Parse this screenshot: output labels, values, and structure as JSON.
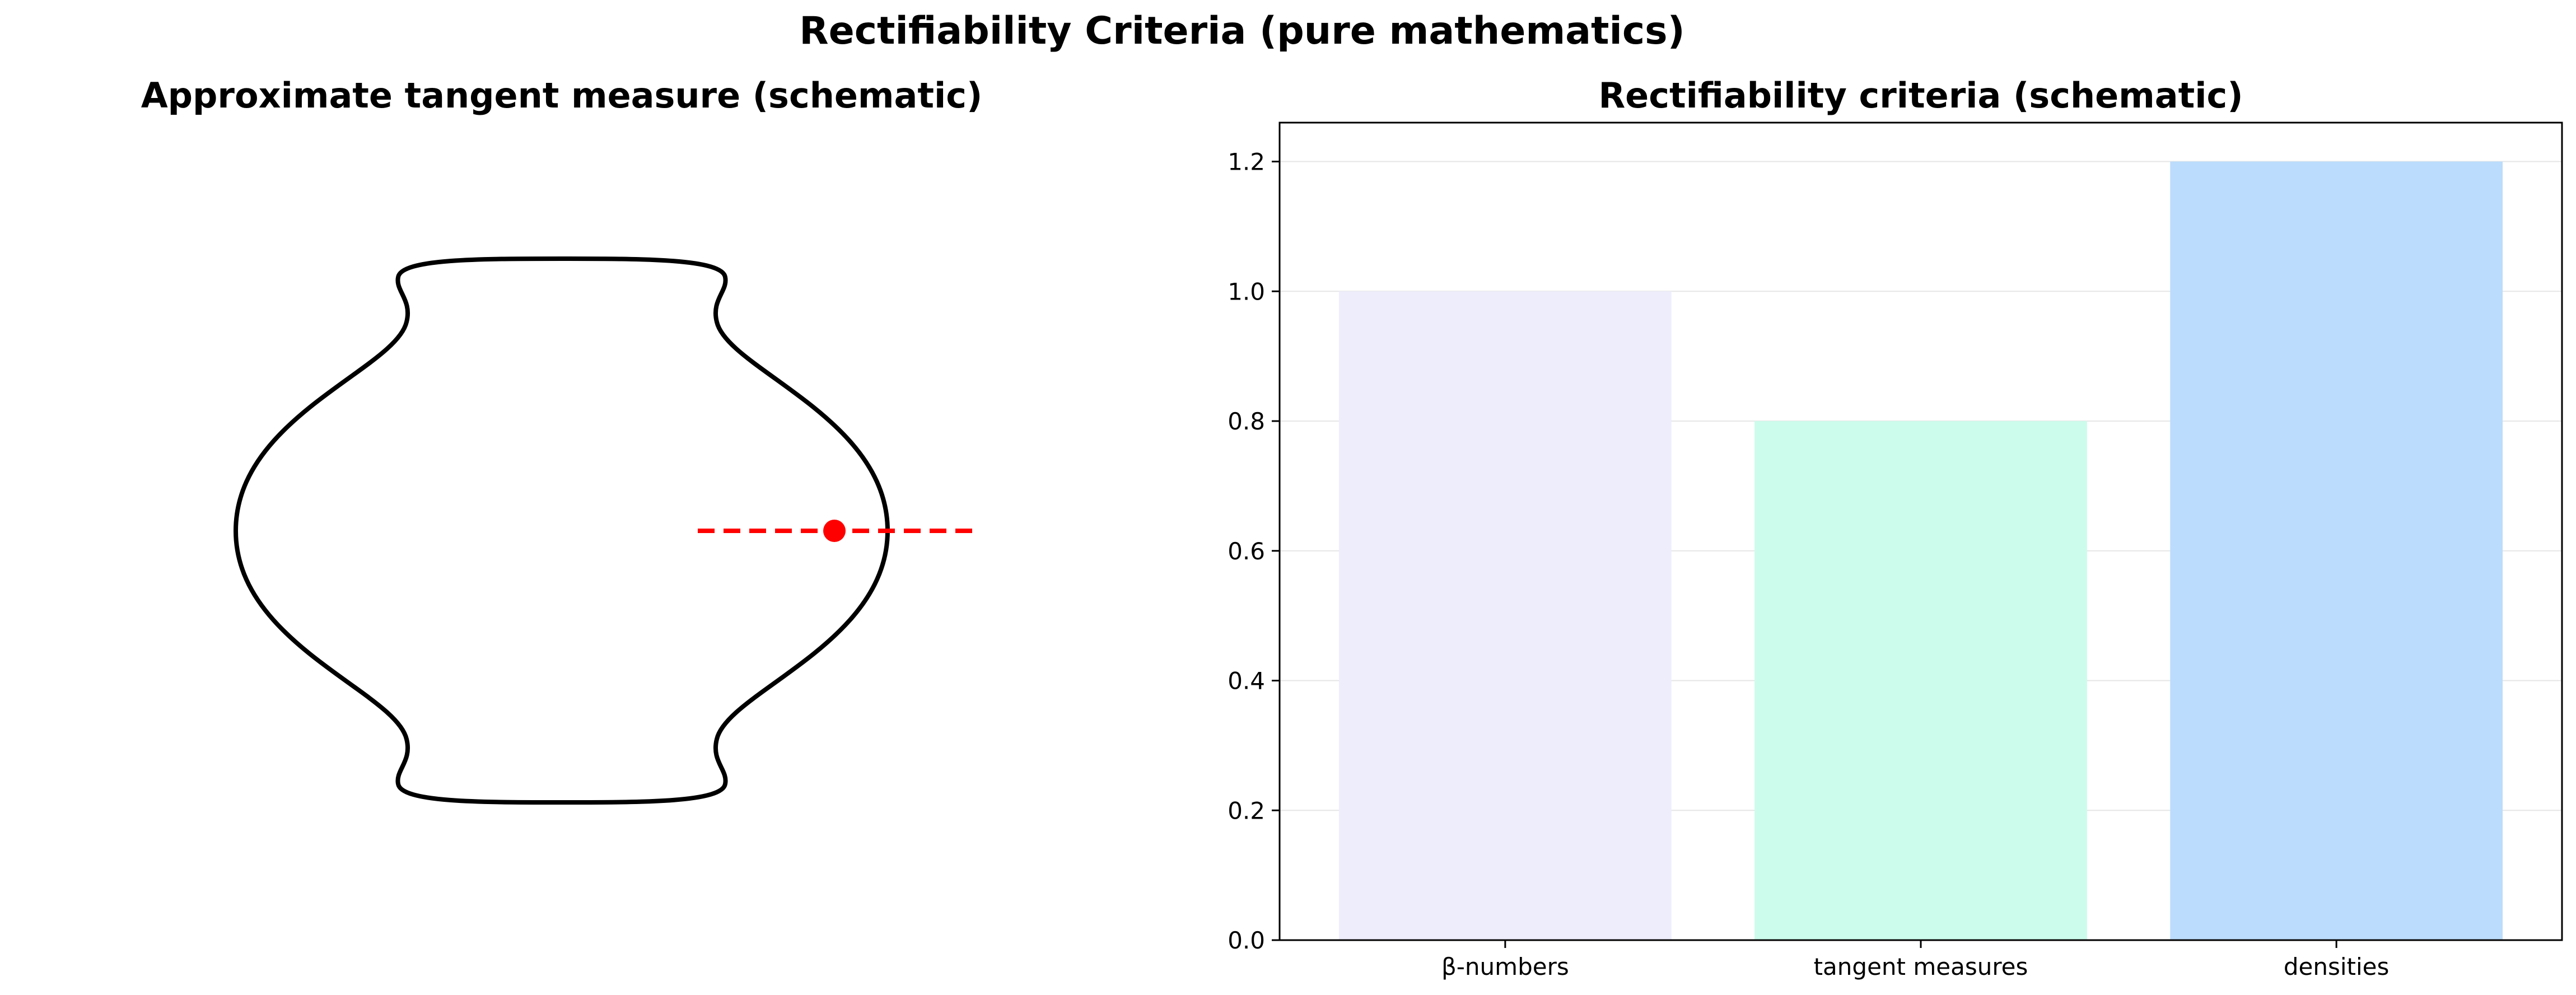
{
  "figure": {
    "title": "Rectifiability Criteria (pure mathematics)"
  },
  "left_panel": {
    "title": "Approximate tangent measure (schematic)",
    "shape": "closed symmetric curve with horizontal dashed tangent line through a point on the right side",
    "curve_color": "#000000",
    "tangent_color": "#ff0000",
    "point_color": "#ff0000",
    "axes_visible": false
  },
  "chart_data": {
    "type": "bar",
    "title": "Rectifiability criteria (schematic)",
    "categories": [
      "β-numbers",
      "tangent measures",
      "densities"
    ],
    "values": [
      1.0,
      0.8,
      1.2
    ],
    "colors": [
      "#ededfc",
      "#ccfcec",
      "#bbdcfc"
    ],
    "ylim": [
      0,
      1.26
    ],
    "yticks": [
      "0.0",
      "0.2",
      "0.4",
      "0.6",
      "0.8",
      "1.0",
      "1.2"
    ],
    "ytick_values": [
      0.0,
      0.2,
      0.4,
      0.6,
      0.8,
      1.0,
      1.2
    ],
    "grid": "y",
    "xlabel": "",
    "ylabel": ""
  }
}
